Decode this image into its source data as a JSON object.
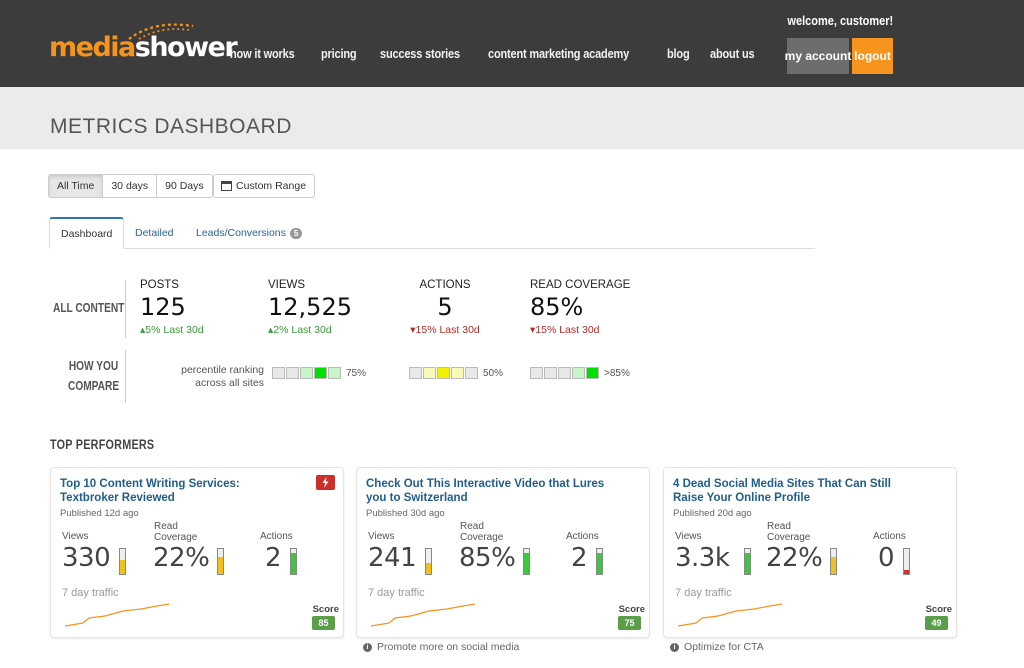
{
  "header": {
    "logo_part1": "media",
    "logo_part2": "shower",
    "nav": [
      "how it works",
      "pricing",
      "success stories",
      "content marketing academy",
      "blog",
      "about us"
    ],
    "welcome": "welcome, customer!",
    "account_label": "my account",
    "logout_label": "logout",
    "accent_color": "#f7941d"
  },
  "page": {
    "title": "METRICS DASHBOARD"
  },
  "range": {
    "options": [
      "All Time",
      "30 days",
      "90 Days"
    ],
    "selected": "All Time",
    "custom_label": "Custom Range"
  },
  "tabs": [
    {
      "label": "Dashboard",
      "active": true
    },
    {
      "label": "Detailed"
    },
    {
      "label": "Leads/Conversions",
      "badge": "5"
    }
  ],
  "all_content": {
    "label_line1": "ALL CONTENT",
    "metrics": [
      {
        "label": "POSTS",
        "value": "125",
        "change": "5% Last 30d",
        "direction": "up"
      },
      {
        "label": "VIEWS",
        "value": "12,525",
        "change": "2% Last 30d",
        "direction": "up"
      },
      {
        "label": "ACTIONS",
        "value": "5",
        "change": "15% Last 30d",
        "direction": "down"
      },
      {
        "label": "READ COVERAGE",
        "value": "85%",
        "change": "15% Last 30d",
        "direction": "down"
      }
    ]
  },
  "compare": {
    "label_line1": "HOW YOU",
    "label_line2": "COMPARE",
    "percentile_line1": "percentile ranking",
    "percentile_line2": "across all sites",
    "rankings": [
      {
        "percent": "75%",
        "active_cell": 3,
        "color": "#00e000",
        "light": "#c8f5c8"
      },
      {
        "percent": "50%",
        "active_cell": 2,
        "color": "#f0f000",
        "light": "#fafab4"
      },
      {
        "percent": ">85%",
        "active_cell": 4,
        "color": "#00e000",
        "light": "#c8f5c8"
      }
    ]
  },
  "top_performers": {
    "title": "TOP PERFORMERS",
    "views_label": "Views",
    "read_label_line1": "Read",
    "read_label_line2": "Coverage",
    "actions_label": "Actions",
    "traffic_label": "7 day traffic",
    "score_label": "Score",
    "cards": [
      {
        "title": "Top 10 Content Writing Services: Textbroker Reviewed",
        "published": "Published 12d ago",
        "views": "330",
        "read": "22%",
        "actions": "2",
        "views_level": 0.55,
        "read_level": 0.7,
        "actions_level": 0.85,
        "score": "85",
        "flag": true,
        "tip": ""
      },
      {
        "title": "Check Out This Interactive Video that Lures you to Switzerland",
        "published": "Published 30d ago",
        "views": "241",
        "read": "85%",
        "actions": "2",
        "views_level": 0.45,
        "read_level": 0.85,
        "actions_level": 0.85,
        "score": "75",
        "flag": false,
        "tip": "Promote more on social media"
      },
      {
        "title": "4 Dead Social Media Sites That Can Still Raise Your Online Profile",
        "published": "Published 20d ago",
        "views": "3.3k",
        "read": "22%",
        "actions": "0",
        "views_level": 0.85,
        "read_level": 0.7,
        "actions_level": 0.15,
        "score": "49",
        "flag": false,
        "tip": "Optimize for CTA"
      }
    ]
  }
}
